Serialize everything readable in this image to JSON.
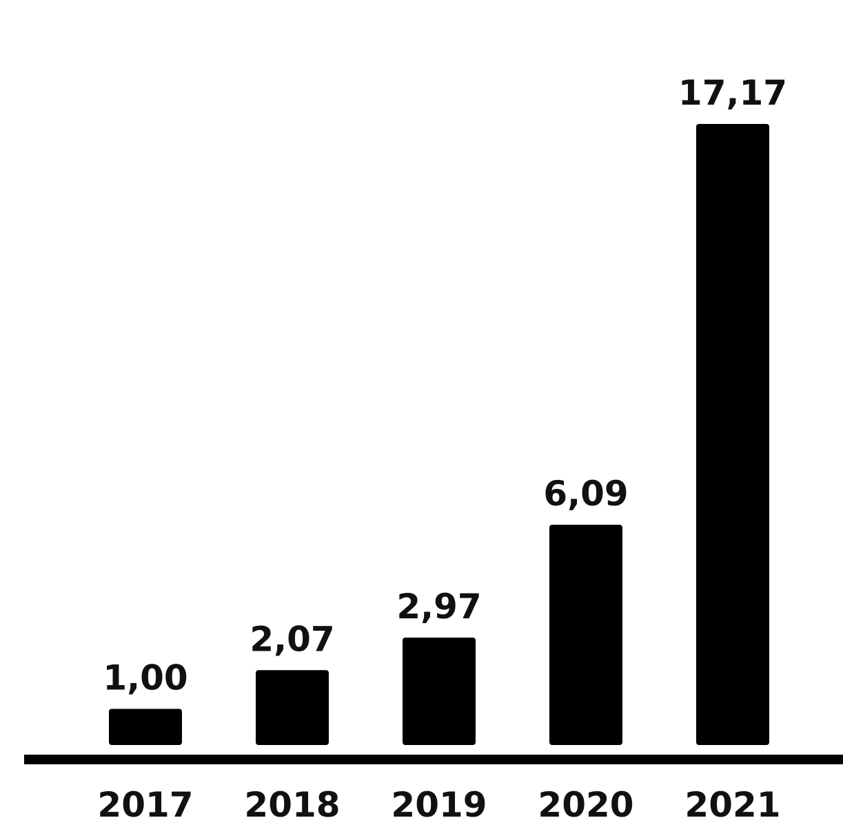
{
  "chart_data": {
    "type": "bar",
    "title": "",
    "xlabel": "",
    "ylabel": "",
    "categories": [
      "2017",
      "2018",
      "2019",
      "2020",
      "2021"
    ],
    "values": [
      1.0,
      2.07,
      2.97,
      6.09,
      17.17
    ],
    "data_labels": [
      "1,00",
      "2,07",
      "2,97",
      "6,09",
      "17,17"
    ],
    "ylim": [
      0,
      17.17
    ],
    "grid": false,
    "legend": "none",
    "y_axis_visible": false,
    "colors": {
      "bar": "#000000",
      "axis": "#000000",
      "text": "#111111",
      "background": "#ffffff"
    }
  }
}
